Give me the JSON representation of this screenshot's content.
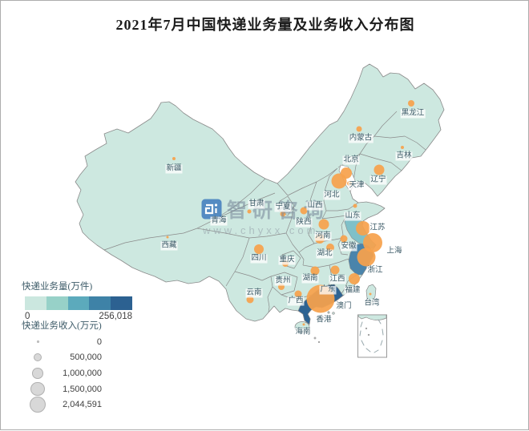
{
  "title": "2021年7月中国快递业务量及业务收入分布图",
  "watermark": {
    "brand": "智研咨询",
    "url": "www.chyxx.com"
  },
  "legend_volume": {
    "title": "快递业务量(万件)",
    "min_label": "0",
    "max_label": "256,018",
    "colors": [
      "#cbe7df",
      "#97d1c8",
      "#5caabc",
      "#3e82a7",
      "#2c6191"
    ]
  },
  "legend_revenue": {
    "title": "快递业务收入(万元)",
    "items": [
      {
        "label": "0",
        "r": 1.5
      },
      {
        "label": "500,000",
        "r": 5
      },
      {
        "label": "1,000,000",
        "r": 6.8
      },
      {
        "label": "1,500,000",
        "r": 8.6
      },
      {
        "label": "2,044,591",
        "r": 10.3
      }
    ]
  },
  "colors": {
    "map_base": "#cde8e0",
    "map_border": "#8a8a8a",
    "bubble": "#f6a14c",
    "label_text": "#3d5b68",
    "label_bg": "rgba(255,255,255,0.75)",
    "legend_value": "#3f3f3f",
    "circle_fill": "#d8d8d8",
    "circle_stroke": "#b0b0b0",
    "municipality_fill": "#fdfefe",
    "inset_dash": "#98a8ad",
    "watermark_blue": "rgba(62,122,188,0.85)",
    "watermark_text": "rgba(120,138,155,0.58)",
    "watermark_url": "rgba(145,155,165,0.55)"
  },
  "chart_data": {
    "type": "choropleth_bubble_map",
    "region": "China provinces",
    "title": "2021年7月中国快递业务量及业务收入分布图",
    "color_scale": {
      "label": "快递业务量(万件)",
      "min": 0,
      "max": 256018,
      "classes": 5
    },
    "size_scale": {
      "label": "快递业务收入(万元)",
      "min": 0,
      "max": 2044591,
      "legend_steps": [
        0,
        500000,
        1000000,
        1500000,
        2044591
      ]
    },
    "notes": "bubble = [cx,cy,r] in px estimated from screenshot; fill only for provinces shaded above base color; 广东 holds both maxima",
    "provinces": [
      {
        "name": "新疆",
        "label": [
          216,
          210
        ],
        "bubble": [
          216,
          197,
          2
        ]
      },
      {
        "name": "西藏",
        "label": [
          210,
          306
        ],
        "bubble": [
          208,
          295,
          1.5
        ]
      },
      {
        "name": "青海",
        "label": [
          272,
          275
        ],
        "bubble": [
          268,
          265,
          1.5
        ]
      },
      {
        "name": "甘肃",
        "label": [
          319,
          254
        ],
        "bubble": [
          310,
          263,
          2.5
        ]
      },
      {
        "name": "宁夏",
        "label": [
          352,
          258
        ],
        "bubble": [
          352,
          266,
          3.5
        ]
      },
      {
        "name": "内蒙古",
        "label": [
          449,
          172
        ],
        "bubble": [
          447,
          160,
          3.5
        ]
      },
      {
        "name": "黑龙江",
        "label": [
          514,
          141
        ],
        "bubble": [
          512,
          128,
          4
        ]
      },
      {
        "name": "吉林",
        "label": [
          503,
          194
        ],
        "bubble": [
          501,
          183,
          2
        ]
      },
      {
        "name": "辽宁",
        "label": [
          471,
          224
        ],
        "bubble": [
          472,
          211,
          6.5
        ]
      },
      {
        "name": "北京",
        "label": [
          437,
          199
        ],
        "bubble": [
          431,
          215,
          7
        ],
        "fill": "white"
      },
      {
        "name": "天津",
        "label": [
          444,
          231
        ],
        "bubble": [
          435,
          228,
          3
        ],
        "fill": "white"
      },
      {
        "name": "河北",
        "label": [
          413,
          243
        ],
        "bubble": [
          422,
          225,
          9.5
        ]
      },
      {
        "name": "山西",
        "label": [
          392,
          256
        ],
        "bubble": [
          378,
          262,
          4.5
        ]
      },
      {
        "name": "陕西",
        "label": [
          378,
          277
        ],
        "bubble": [
          403,
          279,
          6.5
        ]
      },
      {
        "name": "山东",
        "label": [
          439,
          269
        ],
        "bubble": [
          442,
          256,
          2.5
        ]
      },
      {
        "name": "河南",
        "label": [
          402,
          294
        ],
        "bubble": [
          398,
          297,
          6
        ]
      },
      {
        "name": "江苏",
        "label": [
          470,
          284
        ],
        "bubble": [
          452,
          284,
          9
        ],
        "fill": "#7fc0c8"
      },
      {
        "name": "安徽",
        "label": [
          434,
          307
        ],
        "bubble": [
          428,
          297,
          4.5
        ]
      },
      {
        "name": "上海",
        "label": [
          491,
          313
        ],
        "bubble": [
          464,
          302,
          12
        ]
      },
      {
        "name": "湖北",
        "label": [
          404,
          316
        ],
        "bubble": [
          411,
          308,
          5
        ]
      },
      {
        "name": "浙江",
        "label": [
          467,
          337
        ],
        "bubble": [
          456,
          320,
          11.5
        ],
        "fill": "#4a84ab"
      },
      {
        "name": "四川",
        "label": [
          322,
          322
        ],
        "bubble": [
          322,
          310,
          6
        ]
      },
      {
        "name": "重庆",
        "label": [
          357,
          324
        ],
        "bubble": [
          355,
          328,
          4
        ]
      },
      {
        "name": "贵州",
        "label": [
          352,
          350
        ],
        "bubble": [
          350,
          357,
          4
        ]
      },
      {
        "name": "湖南",
        "label": [
          386,
          347
        ],
        "bubble": [
          392,
          337,
          5.5
        ]
      },
      {
        "name": "江西",
        "label": [
          420,
          348
        ],
        "bubble": [
          417,
          336,
          5.5
        ]
      },
      {
        "name": "福建",
        "label": [
          439,
          362
        ],
        "bubble": [
          441,
          347,
          7
        ]
      },
      {
        "name": "云南",
        "label": [
          316,
          365
        ],
        "bubble": [
          311,
          373,
          4.5
        ]
      },
      {
        "name": "广西",
        "label": [
          368,
          375
        ],
        "bubble": [
          371,
          366,
          4.5
        ]
      },
      {
        "name": "广东",
        "label": [
          408,
          361
        ],
        "bubble": [
          399,
          372,
          17.5
        ],
        "fill": "#2e6392"
      },
      {
        "name": "澳门",
        "label": [
          428,
          382
        ],
        "bubble": null
      },
      {
        "name": "香港",
        "label": [
          403,
          399
        ],
        "bubble": null
      },
      {
        "name": "台湾",
        "label": [
          463,
          378
        ],
        "bubble": [
          461,
          366,
          1.5
        ]
      },
      {
        "name": "海南",
        "label": [
          377,
          414
        ],
        "bubble": [
          378,
          404,
          1.5
        ]
      }
    ]
  }
}
